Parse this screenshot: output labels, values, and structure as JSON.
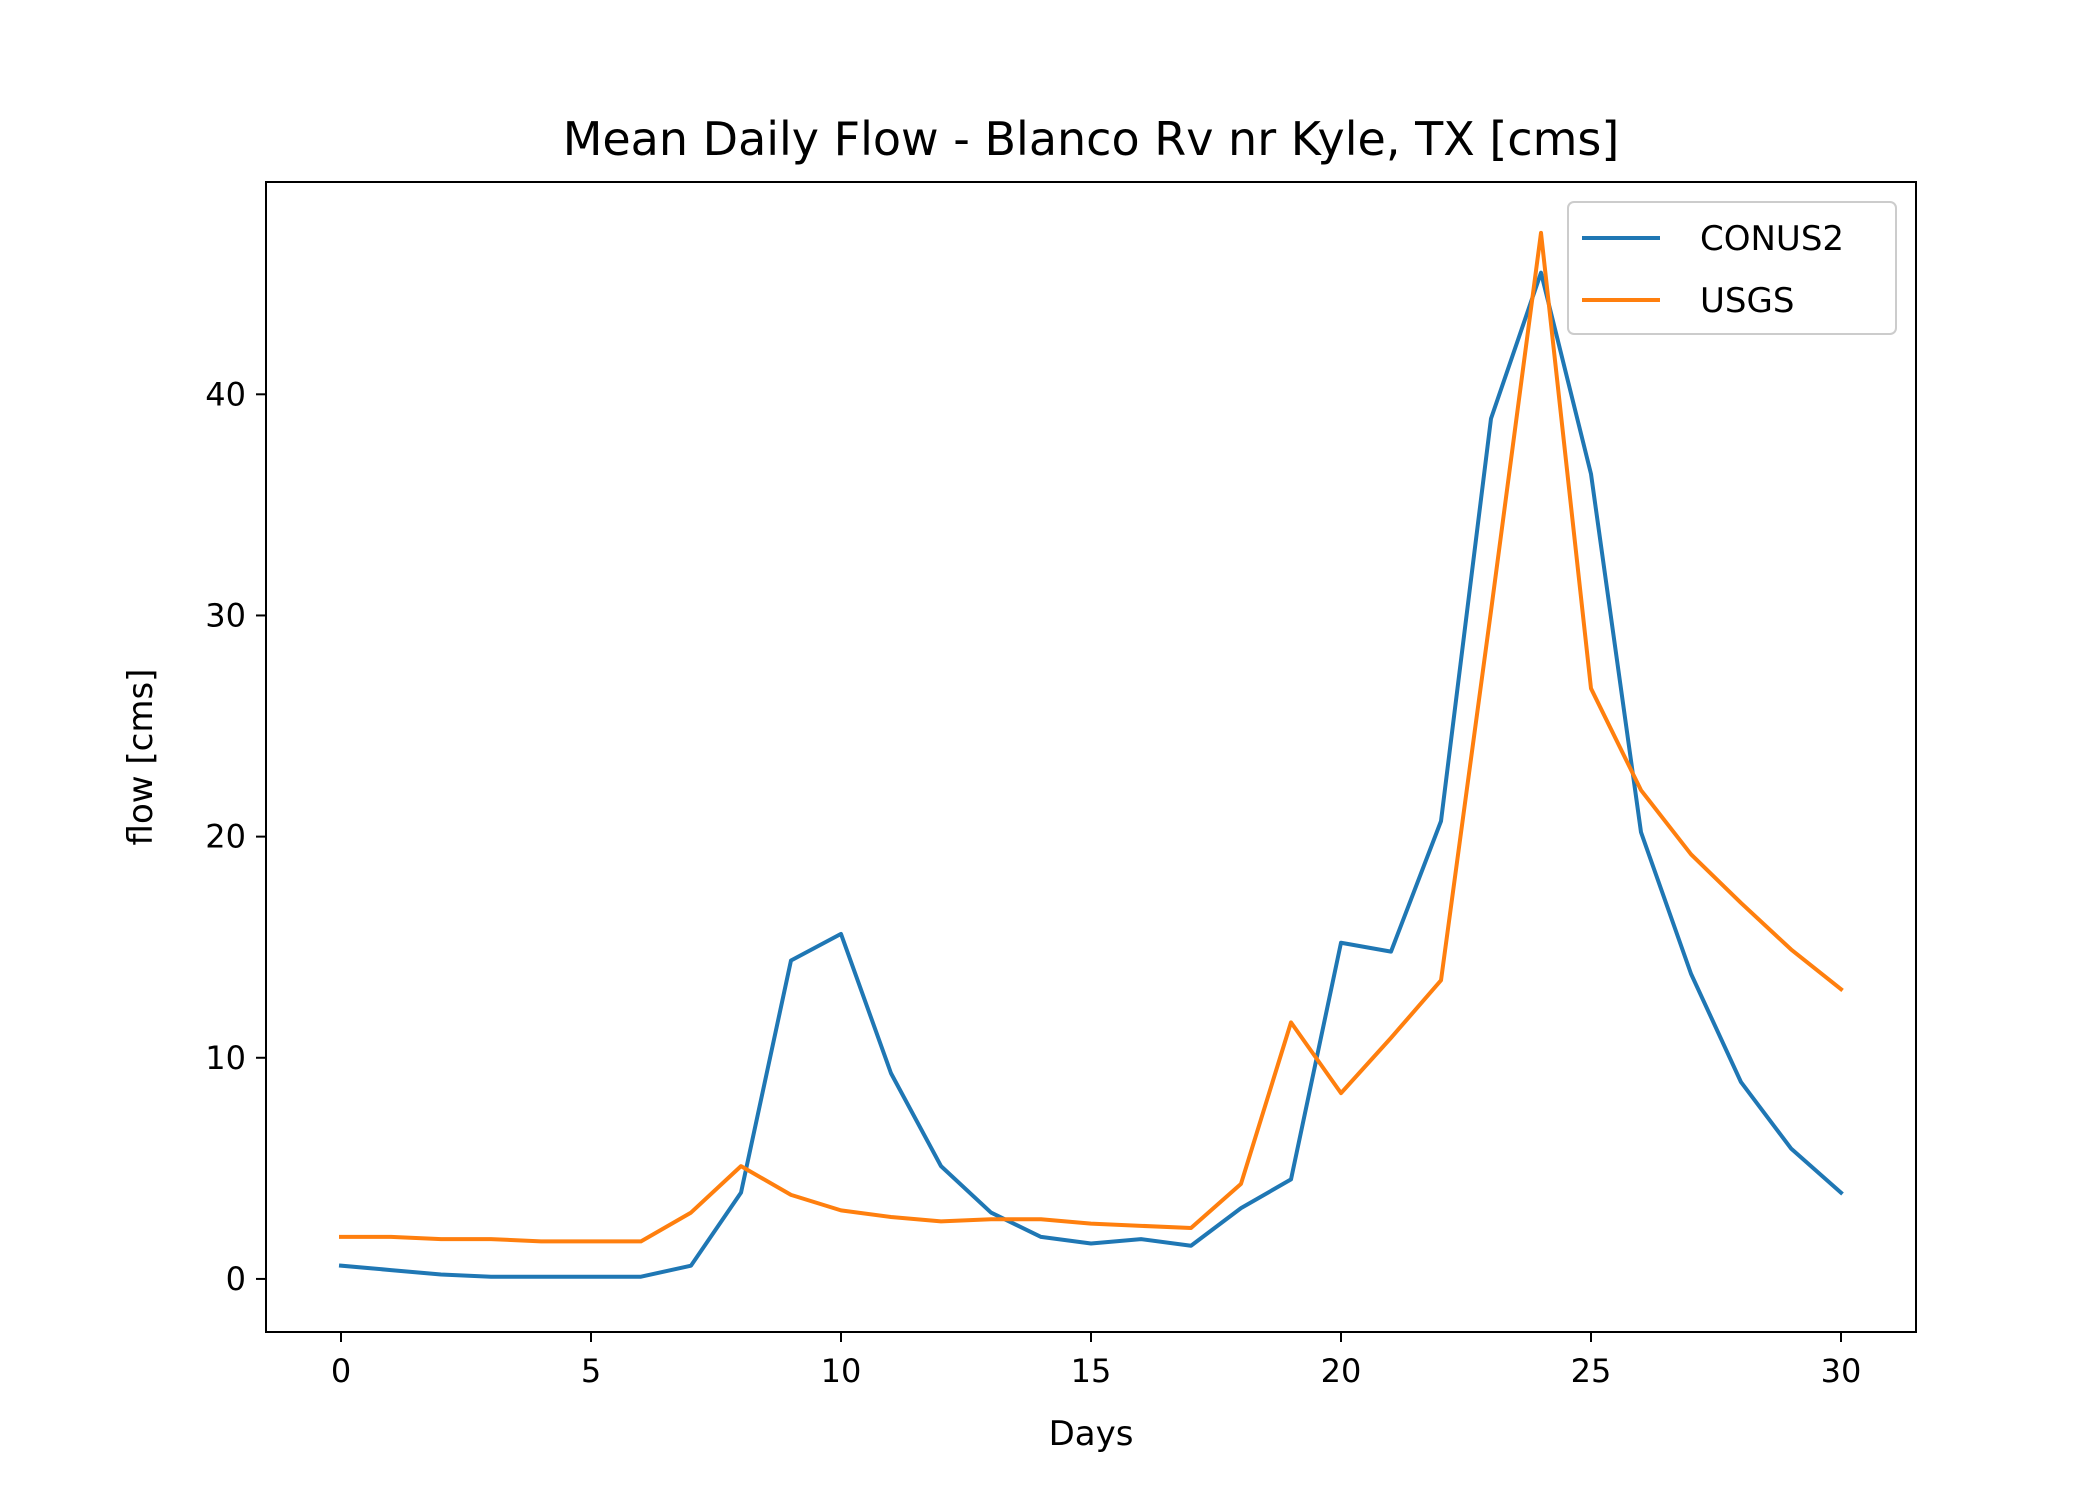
{
  "chart_data": {
    "type": "line",
    "title": "Mean Daily Flow - Blanco Rv nr Kyle, TX [cms]",
    "xlabel": "Days",
    "ylabel": "flow [cms]",
    "xlim": [
      -1.5,
      31.5
    ],
    "ylim": [
      -2.4,
      49.6
    ],
    "xticks": [
      0,
      5,
      10,
      15,
      20,
      25,
      30
    ],
    "yticks": [
      0,
      10,
      20,
      30,
      40
    ],
    "grid": false,
    "legend": "top-right",
    "x": [
      0,
      1,
      2,
      3,
      4,
      5,
      6,
      7,
      8,
      9,
      10,
      11,
      12,
      13,
      14,
      15,
      16,
      17,
      18,
      19,
      20,
      21,
      22,
      23,
      24,
      25,
      26,
      27,
      28,
      29,
      30
    ],
    "series": [
      {
        "name": "CONUS2",
        "color": "#1f77b4",
        "values": [
          0.6,
          0.4,
          0.2,
          0.1,
          0.1,
          0.1,
          0.1,
          0.6,
          3.9,
          14.4,
          15.6,
          9.3,
          5.1,
          3.0,
          1.9,
          1.6,
          1.8,
          1.5,
          3.2,
          4.5,
          15.2,
          14.8,
          20.7,
          38.9,
          45.5,
          36.4,
          20.2,
          13.8,
          8.9,
          5.9,
          3.9
        ]
      },
      {
        "name": "USGS",
        "color": "#ff7f0e",
        "values": [
          1.9,
          1.9,
          1.8,
          1.8,
          1.7,
          1.7,
          1.7,
          3.0,
          5.1,
          3.8,
          3.1,
          2.8,
          2.6,
          2.7,
          2.7,
          2.5,
          2.4,
          2.3,
          4.3,
          11.6,
          8.4,
          10.9,
          13.5,
          30.2,
          47.3,
          26.7,
          22.1,
          19.2,
          17.0,
          14.9,
          13.1
        ]
      }
    ]
  }
}
